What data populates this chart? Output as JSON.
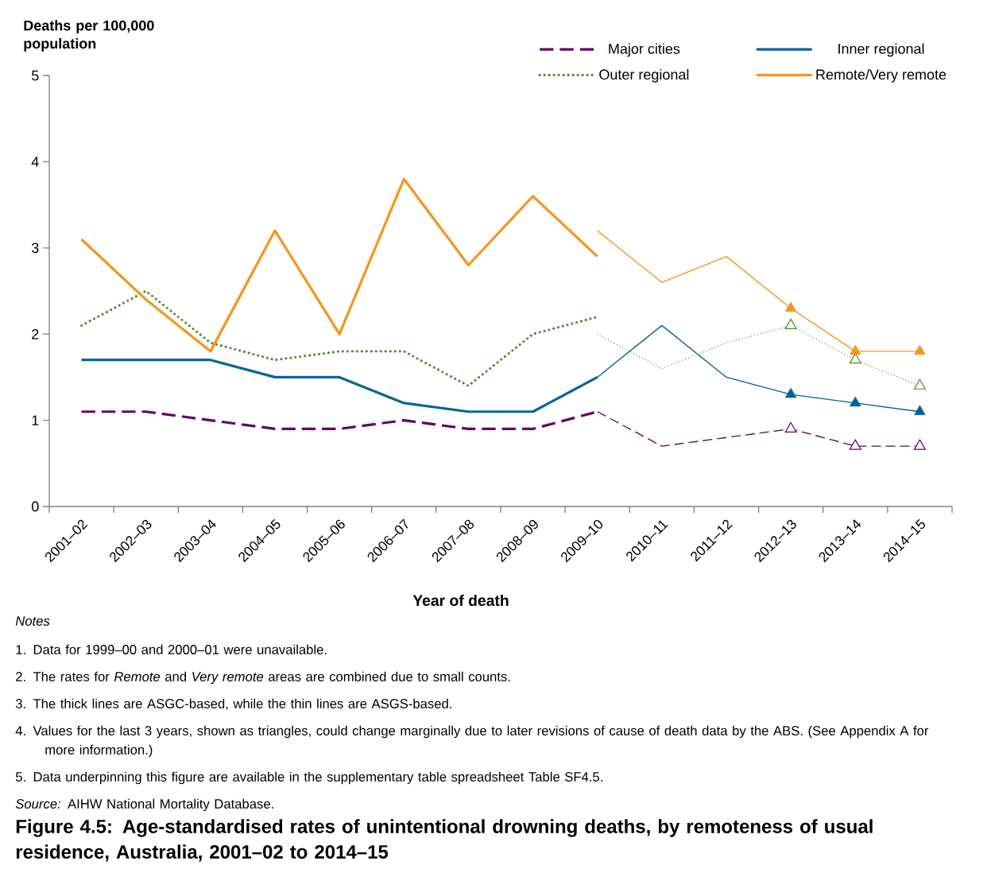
{
  "chart_data": {
    "type": "line",
    "title": "Figure 4.5: Age-standardised rates of unintentional drowning deaths, by remoteness of usual residence, Australia, 2001–02 to 2014–15",
    "xlabel": "Year of death",
    "ylabel": "Deaths per 100,000 population",
    "categories": [
      "2001–02",
      "2002–03",
      "2003–04",
      "2004–05",
      "2005–06",
      "2006–07",
      "2007–08",
      "2008–09",
      "2009–10",
      "2010–11",
      "2011–12",
      "2012–13",
      "2013–14",
      "2014–15"
    ],
    "ylim": [
      0,
      5
    ],
    "yticks": [
      0,
      1,
      2,
      3,
      4,
      5
    ],
    "legend": "top right",
    "series": [
      {
        "name": "Major cities",
        "color": "#660066",
        "line_style": "dashed",
        "values": [
          1.1,
          1.1,
          1.0,
          0.9,
          0.9,
          1.0,
          0.9,
          0.9,
          1.1,
          null,
          null,
          null,
          null,
          null
        ]
      },
      {
        "name": "Inner regional",
        "color": "#006699",
        "line_style": "solid",
        "values": [
          1.7,
          1.7,
          1.7,
          1.5,
          1.5,
          1.2,
          1.1,
          1.1,
          1.5,
          null,
          null,
          null,
          null,
          null
        ]
      },
      {
        "name": "Outer regional",
        "color": "#4a8a2a",
        "line_style": "dotted",
        "values": [
          2.1,
          2.5,
          1.9,
          1.7,
          1.8,
          1.8,
          1.4,
          2.0,
          2.2,
          null,
          null,
          null,
          null,
          null
        ]
      },
      {
        "name": "Remote/Very remote",
        "color": "#f7941d",
        "line_style": "solid",
        "values": [
          3.1,
          2.4,
          1.8,
          3.2,
          2.0,
          3.8,
          2.8,
          3.6,
          2.9,
          null,
          null,
          null,
          null,
          null
        ]
      },
      {
        "color": "#660066",
        "line_style": "dashed",
        "values": [
          null,
          null,
          null,
          null,
          null,
          null,
          null,
          null,
          1.1,
          0.7,
          0.8,
          0.9,
          0.7,
          0.7
        ]
      },
      {
        "color": "#006699",
        "line_style": "solid",
        "values": [
          null,
          null,
          null,
          null,
          null,
          null,
          null,
          null,
          1.5,
          2.1,
          1.5,
          1.3,
          1.2,
          1.1
        ]
      },
      {
        "color": "#4a8a2a",
        "line_style": "dotted",
        "values": [
          null,
          null,
          null,
          null,
          null,
          null,
          null,
          null,
          2.0,
          1.6,
          1.9,
          2.1,
          1.7,
          1.4
        ]
      },
      {
        "color": "#f7941d",
        "line_style": "solid",
        "values": [
          null,
          null,
          null,
          null,
          null,
          null,
          null,
          null,
          3.2,
          2.6,
          2.9,
          2.3,
          1.8,
          1.8
        ]
      },
      {
        "type": "scatter",
        "marker": "triangle",
        "color": "#660066",
        "line_style": "dashed",
        "values": [
          null,
          null,
          null,
          null,
          null,
          null,
          null,
          null,
          null,
          null,
          null,
          0.9,
          0.7,
          0.7
        ]
      },
      {
        "type": "scatter",
        "marker": "triangle",
        "color": "#006699",
        "line_style": "solid",
        "values": [
          null,
          null,
          null,
          null,
          null,
          null,
          null,
          null,
          null,
          null,
          null,
          1.3,
          1.2,
          1.1
        ]
      },
      {
        "type": "scatter",
        "marker": "triangle",
        "color": "#4a8a2a",
        "line_style": "dotted",
        "values": [
          null,
          null,
          null,
          null,
          null,
          null,
          null,
          null,
          null,
          null,
          null,
          2.1,
          1.7,
          1.4
        ]
      },
      {
        "type": "scatter",
        "marker": "triangle",
        "color": "#f7941d",
        "line_style": "solid",
        "values": [
          null,
          null,
          null,
          null,
          null,
          null,
          null,
          null,
          null,
          null,
          null,
          2.3,
          1.8,
          1.8
        ]
      }
    ],
    "annotations": [
      "Notes",
      "1. Data for 1999–00 and 2000–01 were unavailable.",
      "2. The rates for *Remote* and *Very remote* areas are combined due to small counts.",
      "3. The thick lines are ASGC-based, while the thin lines are ASGS-based.",
      "4. Values for the last 3 years, shown as triangles, could change marginally due to later revisions of cause of death data by the ABS. (See Appendix A for more information.)",
      "5. Data underpinning this figure are available in the supplementary table spreadsheet Table SF4.5.",
      "*Source:* AIHW National Mortality Database."
    ]
  }
}
